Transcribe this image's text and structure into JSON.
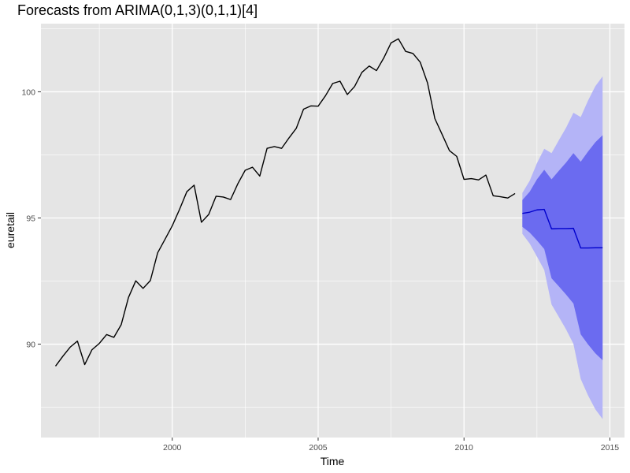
{
  "chart_data": {
    "type": "line",
    "title": "Forecasts from ARIMA(0,1,3)(0,1,1)[4]",
    "xlabel": "Time",
    "ylabel": "euretail",
    "xlim": [
      1995.5,
      2015.5
    ],
    "ylim": [
      86.3,
      102.7
    ],
    "x_ticks": [
      2000,
      2005,
      2010,
      2015
    ],
    "x_tick_labels": [
      "2000",
      "2005",
      "2010",
      "2015"
    ],
    "y_ticks": [
      90,
      95,
      100
    ],
    "y_tick_labels": [
      "90",
      "95",
      "100"
    ],
    "grid": true,
    "colors": {
      "panel": "#e5e5e5",
      "grid": "#ffffff",
      "history": "#000000",
      "forecast": "#0000cc",
      "band80": "#6b6bf0",
      "band95": "#b4b4f7"
    },
    "series": [
      {
        "x": [
          1996.0,
          1996.25,
          1996.5,
          1996.75,
          1997.0,
          1997.25,
          1997.5,
          1997.75,
          1998.0,
          1998.25,
          1998.5,
          1998.75,
          1999.0,
          1999.25,
          1999.5,
          1999.75,
          2000.0,
          2000.25,
          2000.5,
          2000.75,
          2001.0,
          2001.25,
          2001.5,
          2001.75,
          2002.0,
          2002.25,
          2002.5,
          2002.75,
          2003.0,
          2003.25,
          2003.5,
          2003.75,
          2004.0,
          2004.25,
          2004.5,
          2004.75,
          2005.0,
          2005.25,
          2005.5,
          2005.75,
          2006.0,
          2006.25,
          2006.5,
          2006.75,
          2007.0,
          2007.25,
          2007.5,
          2007.75,
          2008.0,
          2008.25,
          2008.5,
          2008.75,
          2009.0,
          2009.25,
          2009.5,
          2009.75,
          2010.0,
          2010.25,
          2010.5,
          2010.75,
          2011.0,
          2011.25,
          2011.5,
          2011.75
        ],
        "values": [
          89.13,
          89.52,
          89.88,
          90.12,
          89.19,
          89.78,
          90.03,
          90.38,
          90.27,
          90.77,
          91.85,
          92.51,
          92.21,
          92.52,
          93.62,
          94.15,
          94.69,
          95.34,
          96.04,
          96.3,
          94.83,
          95.14,
          95.86,
          95.83,
          95.73,
          96.36,
          96.89,
          97.01,
          96.66,
          97.76,
          97.83,
          97.76,
          98.17,
          98.55,
          99.31,
          99.44,
          99.43,
          99.84,
          100.33,
          100.42,
          99.89,
          100.21,
          100.77,
          101.02,
          100.84,
          101.34,
          101.94,
          102.1,
          101.6,
          101.52,
          101.17,
          100.35,
          98.94,
          98.31,
          97.67,
          97.44,
          96.53,
          96.56,
          96.51,
          96.7,
          95.88,
          95.84,
          95.79,
          95.97
        ]
      },
      {
        "x": [
          2012.0,
          2012.25,
          2012.5,
          2012.75,
          2013.0,
          2013.25,
          2013.5,
          2013.75,
          2014.0,
          2014.25,
          2014.5,
          2014.75
        ],
        "values": [
          95.18,
          95.23,
          95.32,
          95.34,
          94.57,
          94.58,
          94.58,
          94.59,
          93.81,
          93.81,
          93.82,
          93.82
        ],
        "lo80": [
          94.65,
          94.42,
          94.11,
          93.77,
          92.61,
          92.29,
          91.96,
          91.61,
          90.39,
          89.99,
          89.64,
          89.36
        ],
        "hi80": [
          95.71,
          96.04,
          96.53,
          96.91,
          96.53,
          96.87,
          97.2,
          97.57,
          97.23,
          97.63,
          98.0,
          98.28
        ],
        "lo95": [
          94.37,
          93.99,
          93.47,
          92.94,
          91.57,
          91.08,
          90.58,
          90.01,
          88.62,
          87.97,
          87.42,
          87.03
        ],
        "hi95": [
          95.99,
          96.47,
          97.17,
          97.74,
          97.57,
          98.08,
          98.58,
          99.17,
          99.0,
          99.65,
          100.22,
          100.61
        ]
      }
    ]
  }
}
